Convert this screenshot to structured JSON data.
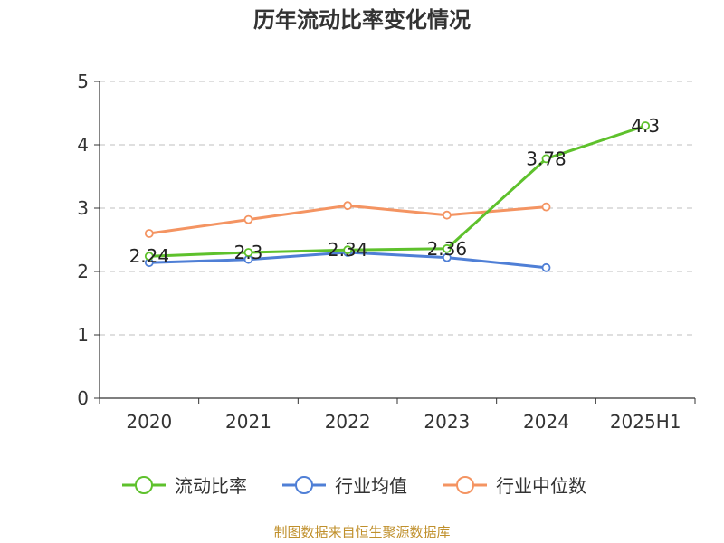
{
  "chart_data": {
    "type": "line",
    "title": "历年流动比率变化情况",
    "categories": [
      "2020",
      "2021",
      "2022",
      "2023",
      "2024",
      "2025H1"
    ],
    "ylim": [
      0,
      5
    ],
    "yticks": [
      "0",
      "1",
      "2",
      "3",
      "4",
      "5"
    ],
    "grid": true,
    "legend_position": "bottom",
    "series": [
      {
        "name": "流动比率",
        "color": "#5ec12c",
        "values": [
          2.24,
          2.3,
          2.34,
          2.36,
          3.78,
          4.3
        ],
        "labels": [
          "2.24",
          "2.3",
          "2.34",
          "2.36",
          "3.78",
          "4.3"
        ]
      },
      {
        "name": "行业均值",
        "color": "#4f7fd6",
        "values": [
          2.14,
          2.19,
          2.3,
          2.22,
          2.06,
          null
        ]
      },
      {
        "name": "行业中位数",
        "color": "#f49462",
        "values": [
          2.6,
          2.82,
          3.04,
          2.89,
          3.02,
          null
        ]
      }
    ]
  },
  "source_text": "制图数据来自恒生聚源数据库"
}
